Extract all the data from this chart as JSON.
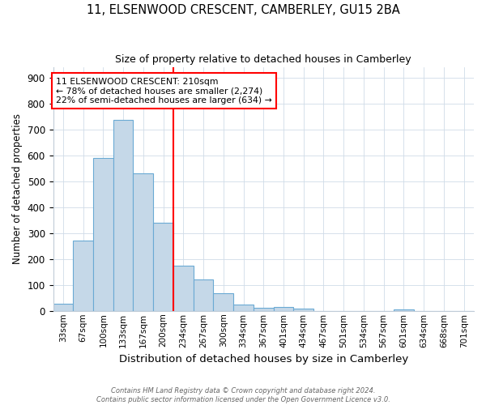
{
  "title1": "11, ELSENWOOD CRESCENT, CAMBERLEY, GU15 2BA",
  "title2": "Size of property relative to detached houses in Camberley",
  "xlabel": "Distribution of detached houses by size in Camberley",
  "ylabel": "Number of detached properties",
  "bin_labels": [
    "33sqm",
    "67sqm",
    "100sqm",
    "133sqm",
    "167sqm",
    "200sqm",
    "234sqm",
    "267sqm",
    "300sqm",
    "334sqm",
    "367sqm",
    "401sqm",
    "434sqm",
    "467sqm",
    "501sqm",
    "534sqm",
    "567sqm",
    "601sqm",
    "634sqm",
    "668sqm",
    "701sqm"
  ],
  "bar_heights": [
    27,
    270,
    590,
    737,
    530,
    340,
    175,
    120,
    67,
    25,
    13,
    15,
    10,
    0,
    0,
    0,
    0,
    7,
    0,
    0,
    0
  ],
  "bar_color": "#C5D8E8",
  "bar_edge_color": "#6AAAD4",
  "annotation_line1": "11 ELSENWOOD CRESCENT: 210sqm",
  "annotation_line2": "← 78% of detached houses are smaller (2,274)",
  "annotation_line3": "22% of semi-detached houses are larger (634) →",
  "annotation_box_color": "white",
  "annotation_box_edge": "red",
  "red_line_x": 5.5,
  "red_line_color": "red",
  "ylim": [
    0,
    940
  ],
  "yticks": [
    0,
    100,
    200,
    300,
    400,
    500,
    600,
    700,
    800,
    900
  ],
  "footnote1": "Contains HM Land Registry data © Crown copyright and database right 2024.",
  "footnote2": "Contains public sector information licensed under the Open Government Licence v3.0.",
  "background_color": "white",
  "grid_color": "#D0DCE8"
}
